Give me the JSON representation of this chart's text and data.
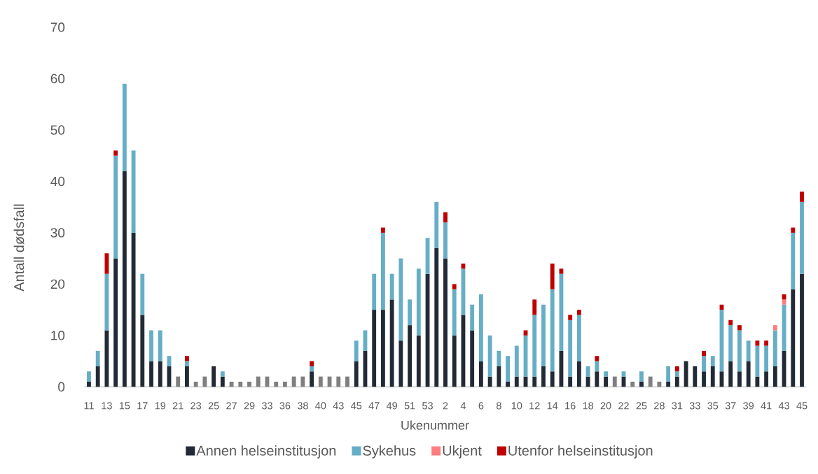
{
  "chart_data": {
    "type": "bar",
    "stacked": true,
    "xlabel": "Ukenummer",
    "ylabel": "Antall dødsfall",
    "categories": [
      "11",
      null,
      "13",
      null,
      "15",
      null,
      "17",
      null,
      "19",
      null,
      "21",
      null,
      "23",
      null,
      "25",
      null,
      "27",
      null,
      "29",
      null,
      "33",
      null,
      "36",
      null,
      "38",
      null,
      "40",
      null,
      "43",
      null,
      "45",
      null,
      "47",
      null,
      "49",
      null,
      "51",
      null,
      "53",
      null,
      "2",
      null,
      "4",
      null,
      "6",
      null,
      "8",
      null,
      "10",
      null,
      "12",
      null,
      "14",
      null,
      "16",
      null,
      "18",
      null,
      "20",
      null,
      "22",
      null,
      "25",
      null,
      "28",
      null,
      "31",
      null,
      "33",
      null,
      "35",
      null,
      "37",
      null,
      "39",
      null,
      "41",
      null,
      "43",
      null,
      "45"
    ],
    "ylim": [
      0,
      70
    ],
    "yticks": [
      0,
      10,
      20,
      30,
      40,
      50,
      60,
      70
    ],
    "legend": "bottom",
    "series": [
      {
        "name": "Annen helseinstitusjon",
        "color": "#222a35",
        "values": [
          1,
          4,
          11,
          25,
          42,
          30,
          14,
          5,
          5,
          4,
          null,
          4,
          null,
          null,
          4,
          2,
          null,
          null,
          null,
          null,
          null,
          null,
          null,
          null,
          null,
          3,
          null,
          null,
          null,
          null,
          5,
          7,
          15,
          15,
          17,
          9,
          12,
          10,
          22,
          27,
          25,
          10,
          14,
          11,
          5,
          2,
          4,
          1,
          2,
          2,
          2,
          4,
          3,
          7,
          2,
          5,
          2,
          3,
          2,
          null,
          2,
          null,
          1,
          null,
          null,
          1,
          2,
          5,
          4,
          3,
          4,
          3,
          5,
          3,
          5,
          2,
          3,
          4,
          7,
          19,
          22
        ]
      },
      {
        "name": "Sykehus",
        "color": "#66aec6",
        "values": [
          2,
          3,
          11,
          20,
          17,
          16,
          8,
          6,
          6,
          2,
          null,
          1,
          null,
          null,
          null,
          1,
          null,
          null,
          null,
          null,
          null,
          null,
          null,
          null,
          null,
          1,
          null,
          null,
          null,
          null,
          4,
          4,
          7,
          15,
          5,
          16,
          5,
          13,
          7,
          9,
          7,
          9,
          9,
          5,
          13,
          8,
          3,
          5,
          6,
          8,
          12,
          12,
          16,
          15,
          11,
          9,
          2,
          2,
          1,
          null,
          1,
          null,
          2,
          null,
          null,
          3,
          1,
          null,
          null,
          3,
          2,
          12,
          7,
          8,
          4,
          6,
          5,
          7,
          9,
          11,
          14
        ]
      },
      {
        "name": "Ukjent",
        "color": "#ff7c80",
        "values": [
          null,
          null,
          null,
          null,
          null,
          null,
          null,
          null,
          null,
          null,
          null,
          null,
          null,
          null,
          null,
          null,
          null,
          null,
          null,
          null,
          null,
          null,
          null,
          null,
          null,
          null,
          null,
          null,
          null,
          null,
          null,
          null,
          null,
          null,
          null,
          null,
          null,
          null,
          null,
          null,
          null,
          null,
          null,
          null,
          null,
          null,
          null,
          null,
          null,
          null,
          null,
          null,
          null,
          null,
          null,
          null,
          null,
          null,
          null,
          null,
          null,
          null,
          null,
          null,
          null,
          null,
          null,
          null,
          null,
          null,
          null,
          null,
          null,
          null,
          null,
          null,
          null,
          1,
          1,
          null,
          null
        ]
      },
      {
        "name": "Utenfor helseinstitusjon",
        "color": "#c00000",
        "values": [
          null,
          null,
          4,
          1,
          null,
          null,
          null,
          null,
          null,
          null,
          null,
          1,
          null,
          null,
          null,
          null,
          null,
          null,
          null,
          null,
          null,
          null,
          null,
          null,
          null,
          1,
          null,
          null,
          null,
          null,
          null,
          null,
          null,
          1,
          null,
          null,
          null,
          null,
          null,
          null,
          2,
          1,
          1,
          null,
          null,
          null,
          null,
          null,
          null,
          1,
          3,
          null,
          5,
          1,
          1,
          1,
          null,
          1,
          null,
          null,
          null,
          null,
          null,
          null,
          null,
          null,
          1,
          null,
          null,
          1,
          null,
          1,
          1,
          1,
          null,
          1,
          1,
          null,
          1,
          1,
          2
        ]
      },
      {
        "color": "#7f7f7f",
        "values": [
          null,
          null,
          null,
          null,
          null,
          null,
          null,
          null,
          null,
          null,
          2,
          null,
          1,
          2,
          null,
          null,
          1,
          1,
          1,
          2,
          2,
          1,
          1,
          2,
          2,
          null,
          2,
          2,
          2,
          2,
          null,
          null,
          null,
          null,
          null,
          null,
          null,
          null,
          null,
          null,
          null,
          null,
          null,
          null,
          null,
          null,
          null,
          null,
          null,
          null,
          null,
          null,
          null,
          null,
          null,
          null,
          null,
          null,
          null,
          2,
          null,
          1,
          null,
          2,
          1,
          null,
          null,
          null,
          null,
          null,
          null,
          null,
          null,
          null,
          null,
          null,
          null,
          null,
          null,
          null,
          null
        ]
      }
    ]
  }
}
